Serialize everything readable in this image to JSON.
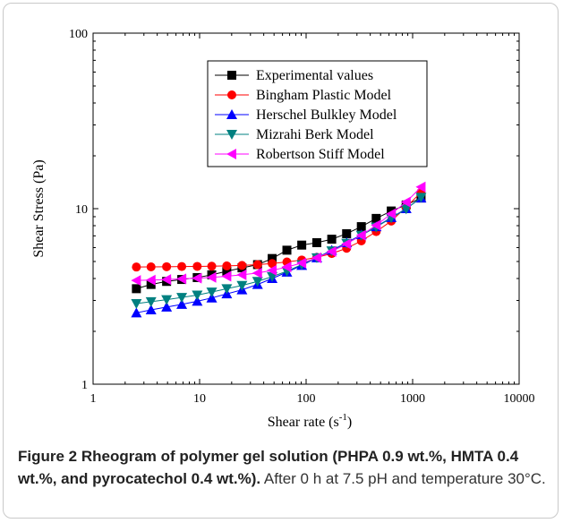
{
  "chart_data": {
    "type": "scatter",
    "xscale": "log",
    "yscale": "log",
    "xlim": [
      1,
      10000
    ],
    "ylim": [
      1,
      100
    ],
    "xlabel": "Shear rate",
    "xlabel_unit_base": "(s",
    "xlabel_unit_exp": "-1",
    "xlabel_unit_close": ")",
    "ylabel": "Shear Stress (Pa)",
    "xticks": [
      "1",
      "10",
      "100",
      "1000",
      "10000"
    ],
    "yticks": [
      "1",
      "10",
      "100"
    ],
    "legend_position": "top-center",
    "x": [
      2.55,
      3.5,
      4.9,
      6.8,
      9.5,
      13,
      18,
      25,
      35,
      48,
      66,
      91,
      126,
      174,
      240,
      330,
      455,
      630,
      870,
      1200
    ],
    "series": [
      {
        "name": "Experimental values",
        "color": "#000000",
        "marker": "square",
        "values": [
          3.5,
          3.7,
          3.85,
          3.95,
          4.05,
          4.2,
          4.4,
          4.6,
          4.8,
          5.2,
          5.8,
          6.2,
          6.4,
          6.7,
          7.2,
          7.9,
          8.8,
          9.7,
          10.5,
          11.5
        ]
      },
      {
        "name": "Bingham Plastic Model",
        "color": "#ff0000",
        "marker": "circle",
        "values": [
          4.65,
          4.66,
          4.67,
          4.68,
          4.69,
          4.7,
          4.72,
          4.75,
          4.8,
          4.87,
          4.97,
          5.1,
          5.28,
          5.55,
          5.95,
          6.55,
          7.4,
          8.5,
          10.2,
          12.4
        ]
      },
      {
        "name": "Herschel Bulkley Model",
        "color": "#0000ff",
        "marker": "triangle-up",
        "values": [
          2.55,
          2.65,
          2.75,
          2.85,
          2.97,
          3.1,
          3.27,
          3.45,
          3.7,
          4.0,
          4.35,
          4.75,
          5.25,
          5.8,
          6.4,
          7.1,
          7.9,
          8.9,
          10.0,
          11.5
        ]
      },
      {
        "name": "Mizrahi Berk Model",
        "color": "#008080",
        "marker": "triangle-down",
        "values": [
          2.88,
          2.95,
          3.03,
          3.12,
          3.22,
          3.35,
          3.5,
          3.65,
          3.85,
          4.1,
          4.4,
          4.8,
          5.25,
          5.75,
          6.35,
          7.05,
          7.85,
          8.85,
          9.95,
          11.6
        ]
      },
      {
        "name": "Robertson Stiff Model",
        "color": "#ff00ff",
        "marker": "triangle-left",
        "values": [
          3.9,
          3.92,
          3.95,
          3.98,
          4.02,
          4.06,
          4.12,
          4.2,
          4.3,
          4.45,
          4.65,
          4.9,
          5.25,
          5.7,
          6.3,
          7.05,
          8.05,
          9.35,
          10.9,
          13.3
        ]
      }
    ]
  },
  "caption": {
    "label": "Figure 2 Rheogram of polymer gel solution (PHPA 0.9 wt.%, HMTA 0.4 wt.%, and pyrocatechol 0.4 wt.%).",
    "text": " After 0 h at 7.5 pH and temperature 30°C."
  }
}
